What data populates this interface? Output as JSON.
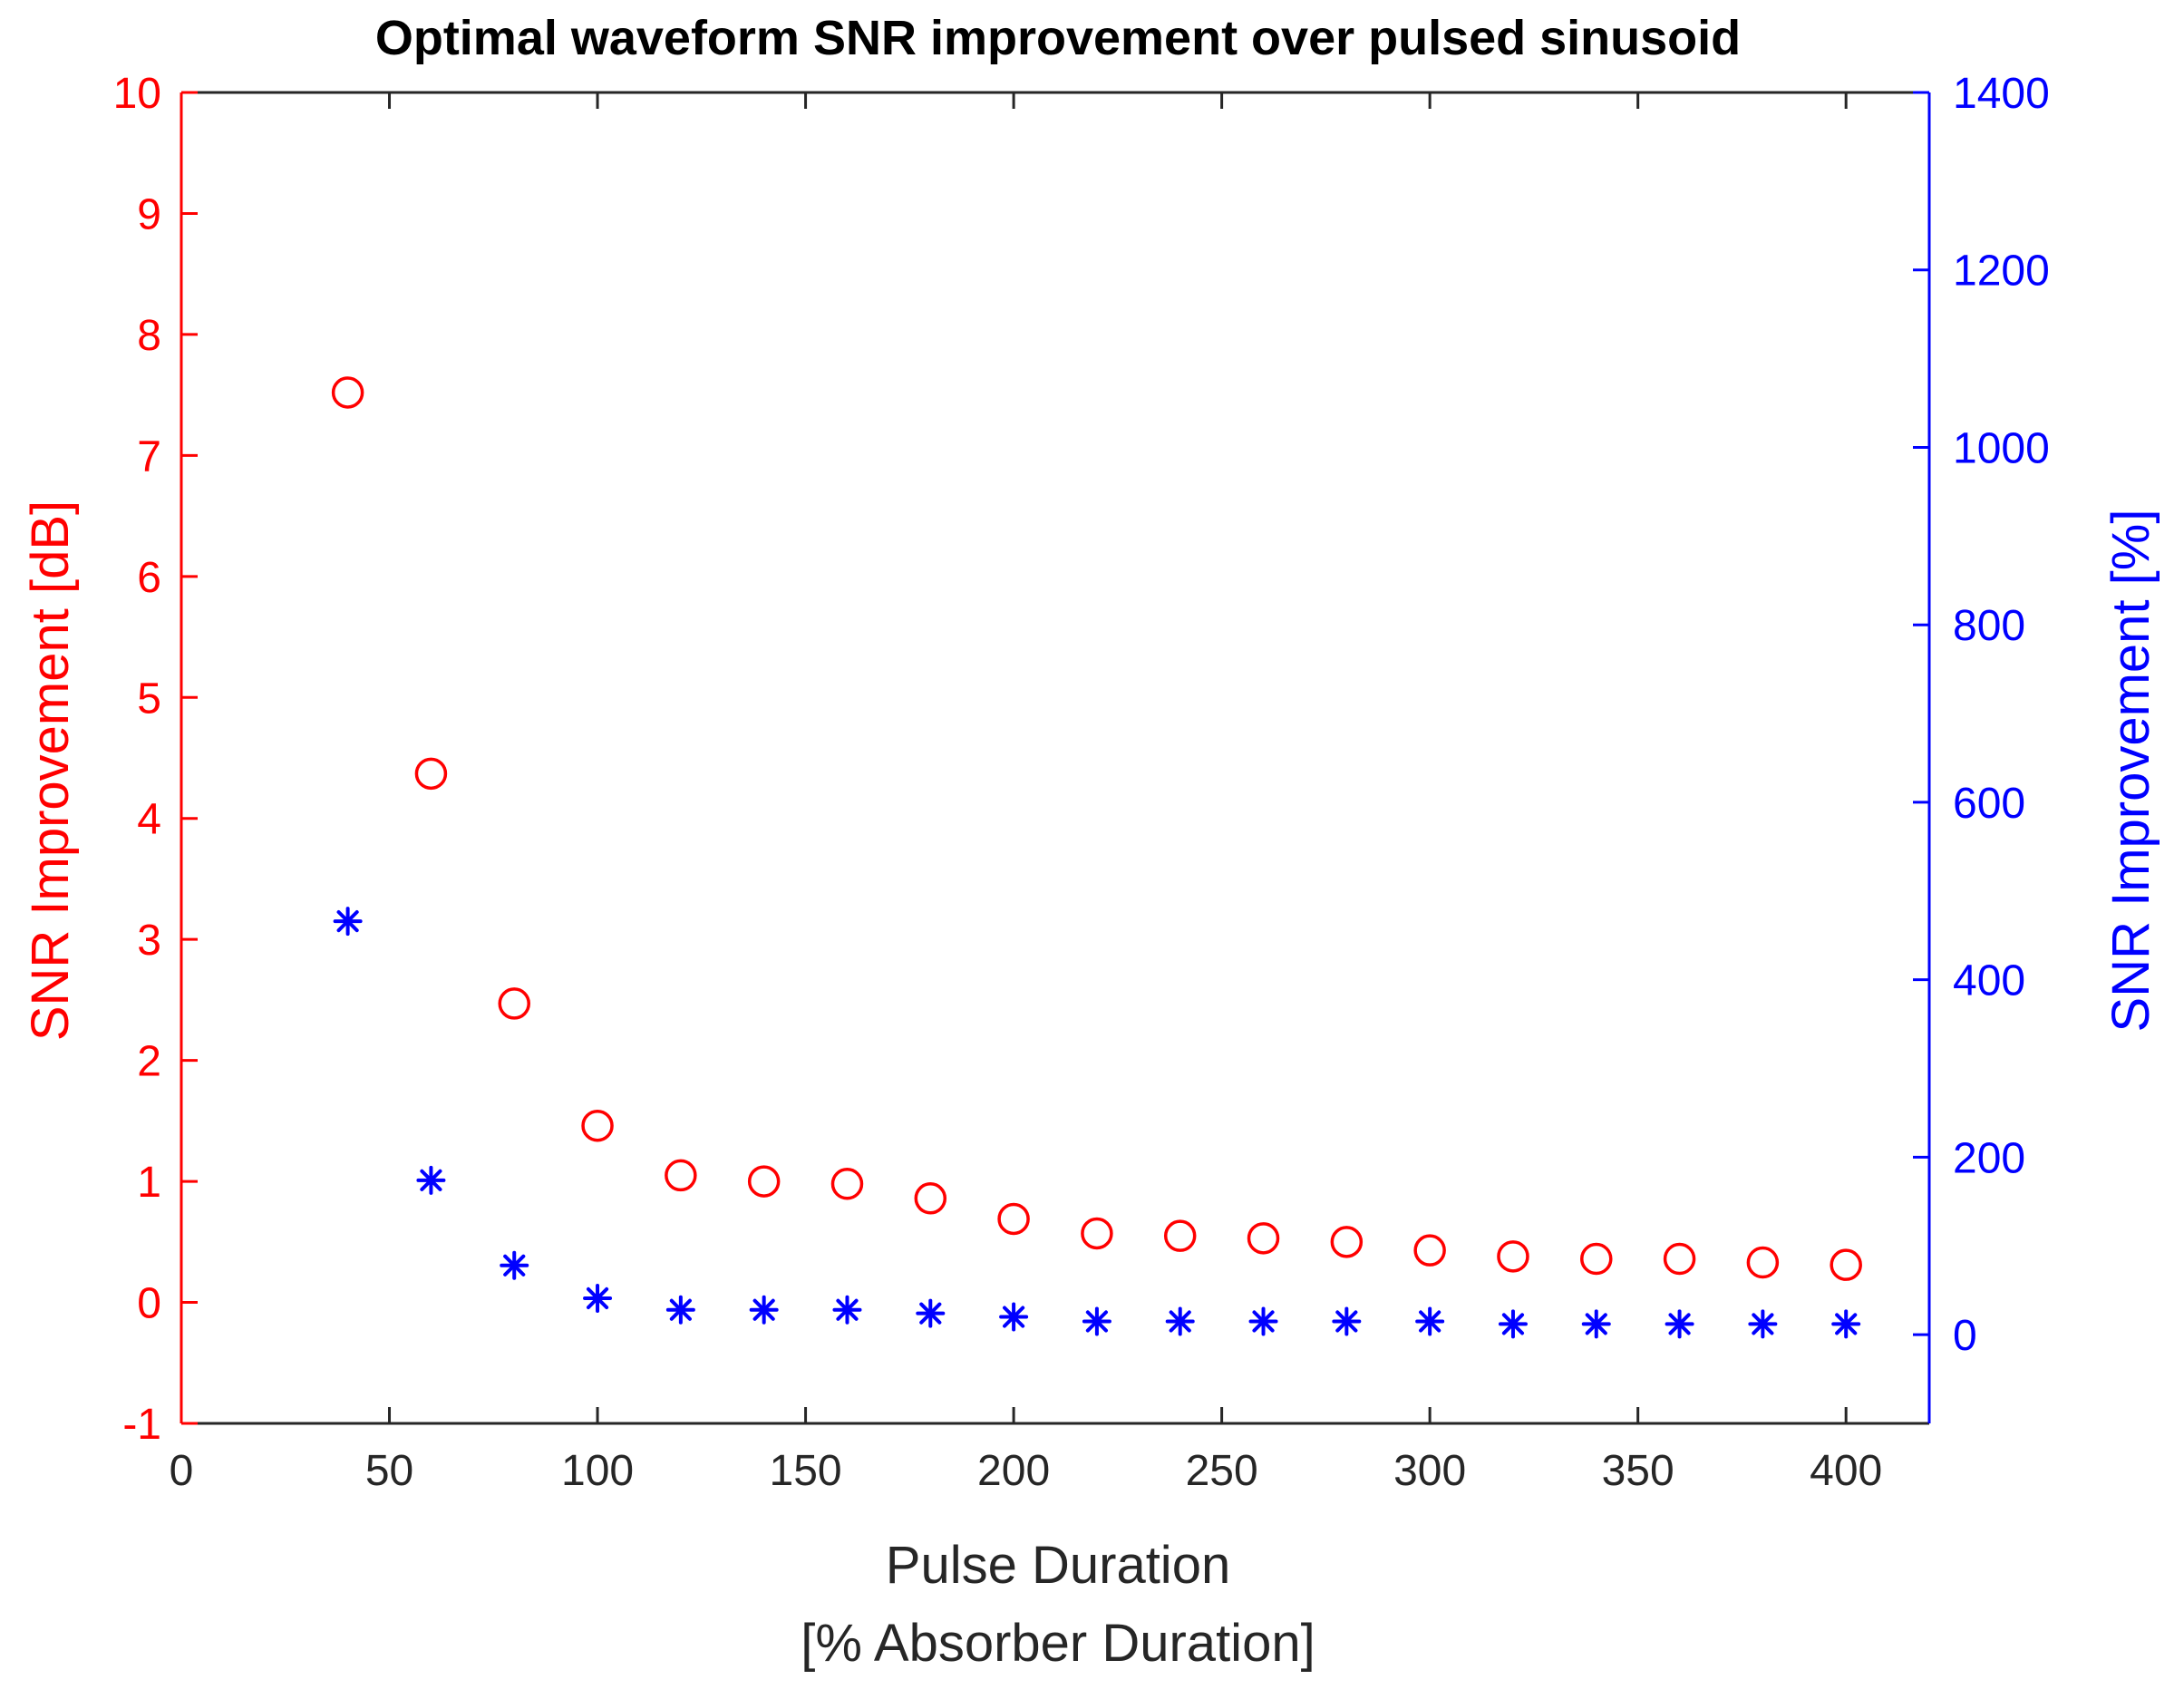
{
  "chart_data": {
    "type": "scatter",
    "title": "Optimal waveform SNR improvement over pulsed sinusoid",
    "xlabel_line1": "Pulse Duration",
    "xlabel_line2": "[% Absorber Duration]",
    "ylabel_left": "SNR Improvement [dB]",
    "ylabel_right": "SNR Improvement [%]",
    "xlim": [
      0,
      420
    ],
    "ylim_left": [
      -1,
      10
    ],
    "ylim_right": [
      -100,
      1400
    ],
    "x_ticks": [
      0,
      50,
      100,
      150,
      200,
      250,
      300,
      350,
      400
    ],
    "y_left_ticks": [
      -1,
      0,
      1,
      2,
      3,
      4,
      5,
      6,
      7,
      8,
      9,
      10
    ],
    "y_right_ticks": [
      0,
      200,
      400,
      600,
      800,
      1000,
      1200,
      1400
    ],
    "grid": false,
    "left_color": "#ff0000",
    "right_color": "#0000ff",
    "series": [
      {
        "name": "SNR Improvement [dB]",
        "axis": "left",
        "marker": "circle",
        "color": "#ff0000",
        "x": [
          40,
          60,
          80,
          100,
          120,
          140,
          160,
          180,
          200,
          220,
          240,
          260,
          280,
          300,
          320,
          340,
          360,
          380,
          400
        ],
        "y": [
          7.52,
          4.37,
          2.47,
          1.46,
          1.05,
          1.0,
          0.98,
          0.86,
          0.69,
          0.57,
          0.55,
          0.53,
          0.5,
          0.43,
          0.38,
          0.36,
          0.36,
          0.33,
          0.31
        ]
      },
      {
        "name": "SNR Improvement [%]",
        "axis": "right",
        "marker": "asterisk",
        "color": "#0000ff",
        "x": [
          40,
          60,
          80,
          100,
          120,
          140,
          160,
          180,
          200,
          220,
          240,
          260,
          280,
          300,
          320,
          340,
          360,
          380,
          400
        ],
        "y": [
          466,
          174,
          78,
          41,
          28,
          28,
          28,
          24,
          20,
          15,
          15,
          15,
          15,
          15,
          12,
          12,
          12,
          12,
          12
        ]
      }
    ]
  }
}
